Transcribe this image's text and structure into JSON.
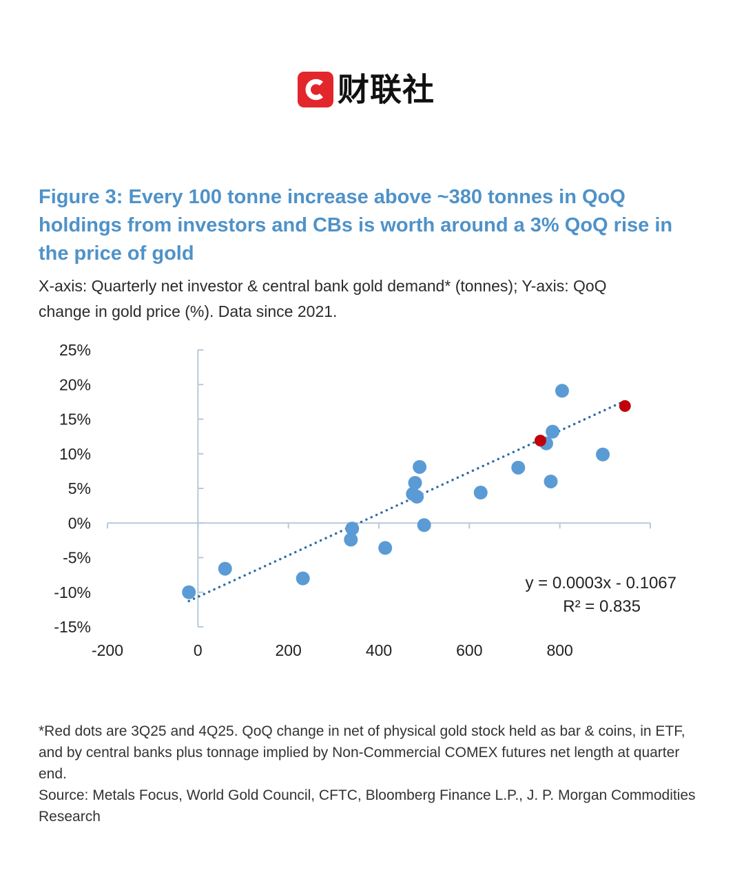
{
  "brand": {
    "name": "财联社",
    "mark_letter": "C",
    "mark_color": "#e3262b"
  },
  "figure": {
    "title": "Figure 3: Every 100 tonne increase above ~380 tonnes in QoQ holdings from investors and CBs is worth around a 3% QoQ rise in the price of gold",
    "subtitle": "X-axis: Quarterly net investor & central bank gold demand* (tonnes); Y-axis: QoQ change in gold price (%). Data since 2021."
  },
  "chart_data": {
    "type": "scatter",
    "xlim": [
      -200,
      1000
    ],
    "ylim": [
      -15,
      25
    ],
    "x_ticks": [
      -200,
      0,
      200,
      400,
      600,
      800
    ],
    "x_tick_labels": [
      "-200",
      "0",
      "200",
      "400",
      "600",
      "800"
    ],
    "y_ticks": [
      25,
      20,
      15,
      10,
      5,
      0,
      -5,
      -10,
      -15
    ],
    "y_tick_labels": [
      "25%",
      "20%",
      "15%",
      "10%",
      "5%",
      "0%",
      "-5%",
      "-10%",
      "-15%"
    ],
    "grid": false,
    "series": [
      {
        "color": "#5b9bd5",
        "points": [
          {
            "x": -20,
            "y": -10.0
          },
          {
            "x": 60,
            "y": -6.6
          },
          {
            "x": 232,
            "y": -8.0
          },
          {
            "x": 338,
            "y": -2.4
          },
          {
            "x": 341,
            "y": -0.8
          },
          {
            "x": 414,
            "y": -3.6
          },
          {
            "x": 475,
            "y": 4.2
          },
          {
            "x": 480,
            "y": 5.8
          },
          {
            "x": 484,
            "y": 3.8
          },
          {
            "x": 490,
            "y": 8.1
          },
          {
            "x": 500,
            "y": -0.3
          },
          {
            "x": 625,
            "y": 4.4
          },
          {
            "x": 708,
            "y": 8.0
          },
          {
            "x": 770,
            "y": 11.5
          },
          {
            "x": 780,
            "y": 6.0
          },
          {
            "x": 784,
            "y": 13.2
          },
          {
            "x": 805,
            "y": 19.1
          },
          {
            "x": 895,
            "y": 9.9
          }
        ]
      },
      {
        "color": "#c0000b",
        "points": [
          {
            "x": 757,
            "y": 11.9
          },
          {
            "x": 944,
            "y": 16.9
          }
        ]
      }
    ],
    "trendline": {
      "color": "#2e6da4",
      "style": "dotted",
      "x_range": [
        -20,
        944
      ],
      "equation": "y = 0.0003x - 0.1067",
      "r_squared": "R² = 0.835"
    }
  },
  "footnotes": {
    "note": "*Red dots are 3Q25 and 4Q25. QoQ change in net of physical gold stock held as bar & coins, in ETF, and by central banks plus tonnage implied by Non-Commercial COMEX futures net length at quarter end.",
    "source": "Source: Metals Focus, World Gold Council, CFTC, Bloomberg Finance L.P., J. P. Morgan Commodities Research"
  }
}
